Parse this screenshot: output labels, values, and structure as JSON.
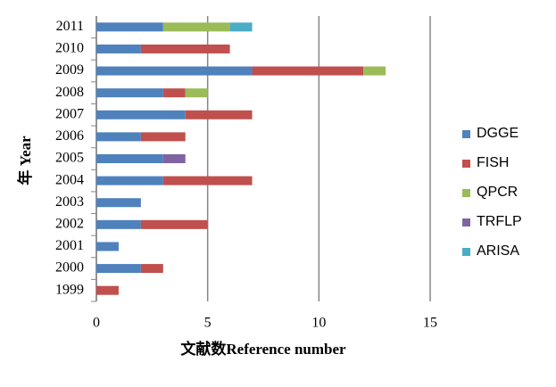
{
  "chart_data": {
    "type": "bar",
    "orientation": "horizontal",
    "stacked": true,
    "x_label": "文献数Reference number",
    "y_label": "年 Year",
    "categories": [
      "1999",
      "2000",
      "2001",
      "2002",
      "2003",
      "2004",
      "2005",
      "2006",
      "2007",
      "2008",
      "2009",
      "2010",
      "2011"
    ],
    "series": [
      {
        "name": "DGGE",
        "color": "#4f81bd",
        "values": [
          0,
          2,
          1,
          2,
          2,
          3,
          3,
          2,
          4,
          3,
          7,
          2,
          3
        ]
      },
      {
        "name": "FISH",
        "color": "#c0504d",
        "values": [
          1,
          1,
          0,
          3,
          0,
          4,
          0,
          2,
          3,
          1,
          5,
          4,
          0
        ]
      },
      {
        "name": "QPCR",
        "color": "#9bbb59",
        "values": [
          0,
          0,
          0,
          0,
          0,
          0,
          0,
          0,
          0,
          1,
          1,
          0,
          3
        ]
      },
      {
        "name": "TRFLP",
        "color": "#8064a2",
        "values": [
          0,
          0,
          0,
          0,
          0,
          0,
          1,
          0,
          0,
          0,
          0,
          0,
          0
        ]
      },
      {
        "name": "ARISA",
        "color": "#4bacc6",
        "values": [
          0,
          0,
          0,
          0,
          0,
          0,
          0,
          0,
          0,
          0,
          0,
          0,
          1
        ]
      }
    ],
    "xlim": [
      0,
      15
    ],
    "xticks": [
      0,
      5,
      10,
      15
    ],
    "grid": true,
    "legend": "right"
  }
}
